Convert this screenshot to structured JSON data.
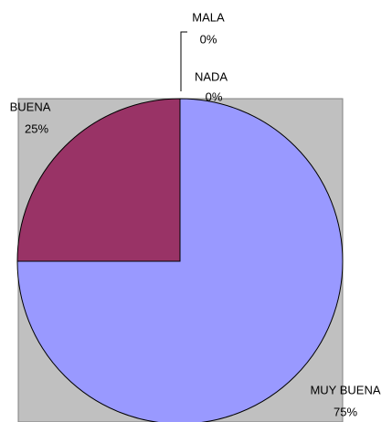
{
  "chart_data": {
    "type": "pie",
    "categories": [
      "MUY BUENA",
      "BUENA",
      "NADA",
      "MALA"
    ],
    "values": [
      75,
      25,
      0,
      0
    ],
    "value_labels": [
      "75%",
      "25%",
      "0%",
      "0%"
    ],
    "colors": [
      "#9999ff",
      "#993366",
      "#ffffcc",
      "#ccffff"
    ]
  }
}
